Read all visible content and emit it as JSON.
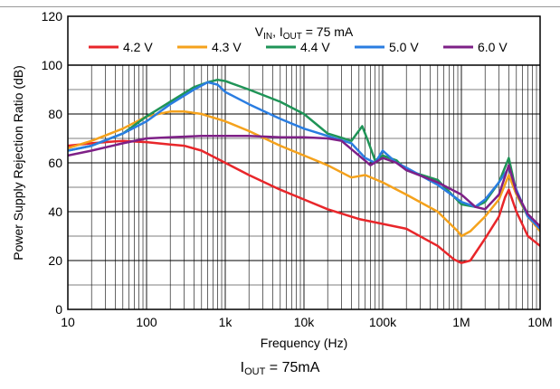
{
  "caption": {
    "main": "I",
    "sub": "OUT",
    "tail": " = 75mA"
  },
  "chart_data": {
    "type": "line",
    "xlabel": "Frequency (Hz)",
    "ylabel": "Power Supply Rejection Ratio (dB)",
    "xscale": "log",
    "xlim": [
      10,
      10000000
    ],
    "ylim": [
      0,
      120
    ],
    "grid": true,
    "legend_placement": "top",
    "legend_title": {
      "v": "V",
      "v_sub": "IN",
      "mid": ", I",
      "i_sub": "OUT",
      "tail": " = 75 mA"
    },
    "x_ticks": [
      {
        "value": 10,
        "label": "10"
      },
      {
        "value": 100,
        "label": "100"
      },
      {
        "value": 1000,
        "label": "1k"
      },
      {
        "value": 10000,
        "label": "10k"
      },
      {
        "value": 100000,
        "label": "100k"
      },
      {
        "value": 1000000,
        "label": "1M"
      },
      {
        "value": 10000000,
        "label": "10M"
      }
    ],
    "y_ticks": [
      0,
      20,
      40,
      60,
      80,
      100,
      120
    ],
    "series": [
      {
        "name": "4.2 V",
        "color": "#e8262a",
        "x": [
          10,
          20,
          30,
          50,
          100,
          200,
          300,
          500,
          1000,
          2000,
          5000,
          10000,
          20000,
          50000,
          100000,
          200000,
          500000,
          800000,
          1000000,
          1300000,
          2000000,
          3000000,
          3600000,
          4000000,
          5000000,
          7000000,
          10000000
        ],
        "y": [
          67,
          68,
          68.5,
          69,
          68.5,
          67.5,
          67,
          65,
          60,
          55,
          49,
          45,
          41,
          37,
          35,
          33,
          26,
          20.5,
          19,
          20,
          29,
          38,
          46,
          49,
          40,
          30,
          26
        ]
      },
      {
        "name": "4.3 V",
        "color": "#f5a21c",
        "x": [
          10,
          20,
          50,
          100,
          200,
          300,
          500,
          1000,
          2000,
          5000,
          10000,
          20000,
          40000,
          60000,
          100000,
          200000,
          500000,
          900000,
          1000000,
          1300000,
          2000000,
          3000000,
          4000000,
          5000000,
          7000000,
          10000000
        ],
        "y": [
          66,
          69,
          74,
          79,
          81,
          81,
          80,
          77,
          73,
          67,
          63,
          59,
          54,
          55,
          52,
          47,
          40,
          32,
          30,
          32,
          38,
          45,
          55,
          47,
          38,
          32
        ]
      },
      {
        "name": "4.4 V",
        "color": "#1f9457",
        "x": [
          10,
          20,
          50,
          100,
          200,
          400,
          600,
          800,
          1000,
          2000,
          5000,
          10000,
          20000,
          40000,
          55000,
          65000,
          80000,
          100000,
          150000,
          200000,
          500000,
          1000000,
          1500000,
          2000000,
          3000000,
          4000000,
          5000000,
          7000000,
          10000000
        ],
        "y": [
          65,
          67,
          72,
          79,
          85,
          91,
          93,
          94,
          93.5,
          90,
          85,
          80,
          72,
          69,
          75,
          69,
          61,
          63,
          61,
          57,
          53,
          43,
          42,
          44,
          52,
          62,
          48,
          38,
          34
        ]
      },
      {
        "name": "5.0 V",
        "color": "#2a7de1",
        "x": [
          10,
          20,
          50,
          100,
          200,
          400,
          600,
          800,
          1000,
          2000,
          5000,
          10000,
          20000,
          40000,
          60000,
          80000,
          100000,
          150000,
          200000,
          500000,
          1000000,
          1500000,
          2000000,
          3000000,
          4000000,
          5000000,
          7000000,
          10000000
        ],
        "y": [
          65,
          67,
          72,
          77,
          84,
          90,
          93,
          92,
          89,
          84,
          78,
          74,
          71,
          68,
          62,
          60,
          65,
          60,
          58,
          51,
          44,
          42,
          45,
          52,
          58,
          49,
          38,
          33
        ]
      },
      {
        "name": "6.0 V",
        "color": "#7e2087",
        "x": [
          10,
          20,
          50,
          100,
          200,
          500,
          1000,
          2000,
          5000,
          10000,
          20000,
          30000,
          50000,
          70000,
          100000,
          150000,
          200000,
          500000,
          1000000,
          1500000,
          2000000,
          3000000,
          4000000,
          5000000,
          7000000,
          10000000
        ],
        "y": [
          63,
          65,
          68,
          70,
          70.5,
          71,
          71,
          71,
          70.5,
          70.5,
          70,
          69,
          63,
          59,
          62,
          60,
          57,
          52,
          47,
          42,
          41,
          47,
          59,
          48,
          39,
          34
        ]
      }
    ]
  }
}
